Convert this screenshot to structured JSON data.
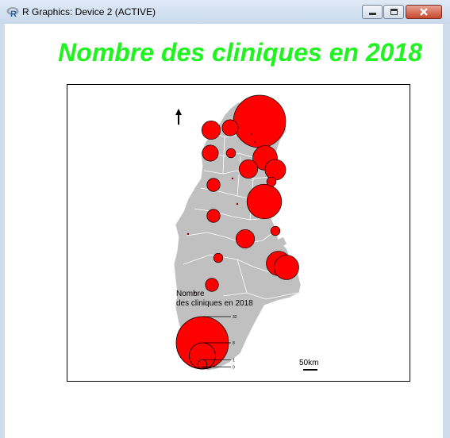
{
  "window": {
    "title": "R Graphics: Device 2 (ACTIVE)",
    "controls": [
      "minimize-icon",
      "maximize-icon",
      "close-icon"
    ]
  },
  "chart_data": {
    "type": "proportional-symbol-map",
    "title": "Nombre des cliniques en 2018",
    "legend": {
      "title_line1": "Nombre",
      "title_line2": "des cliniques en 2018",
      "values": [
        32,
        8,
        1,
        0
      ],
      "labels": [
        "32",
        "8",
        "1",
        "0"
      ]
    },
    "scale_bar": "50km",
    "symbols": [
      {
        "value": 32
      },
      {
        "value": 4
      },
      {
        "value": 3
      },
      {
        "value": 3
      },
      {
        "value": 1
      },
      {
        "value": 7
      },
      {
        "value": 4
      },
      {
        "value": 5
      },
      {
        "value": 2
      },
      {
        "value": 1
      },
      {
        "value": 14
      },
      {
        "value": 2
      },
      {
        "value": 4
      },
      {
        "value": 1
      },
      {
        "value": 7
      },
      {
        "value": 0
      },
      {
        "value": 0
      },
      {
        "value": 0
      },
      {
        "value": 0
      },
      {
        "value": 0
      },
      {
        "value": 1
      },
      {
        "value": 7
      },
      {
        "value": 2
      },
      {
        "value": 0
      }
    ],
    "colors": {
      "symbol": "#ff0000",
      "land": "#c0c0c0",
      "title": "#21f221"
    }
  }
}
